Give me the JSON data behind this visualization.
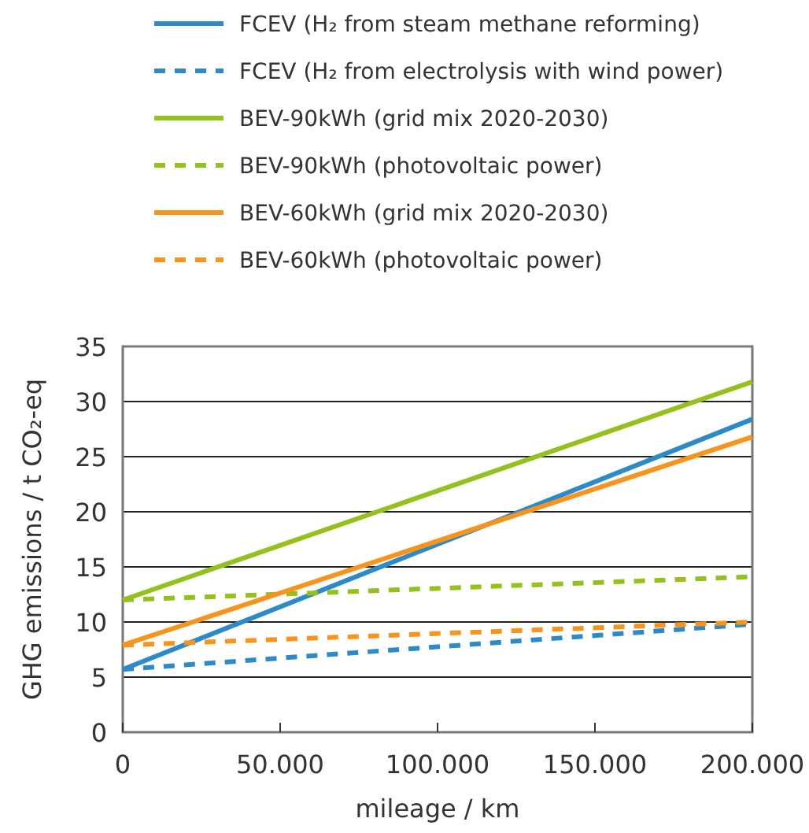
{
  "chart_data": {
    "type": "line",
    "xlabel": "mileage / km",
    "ylabel": "GHG emissions / t CO₂-eq",
    "x": [
      0,
      200000
    ],
    "xlim": [
      0,
      200000
    ],
    "xticks": [
      {
        "value": 0,
        "label": "0"
      },
      {
        "value": 50000,
        "label": "50.000"
      },
      {
        "value": 100000,
        "label": "100.000"
      },
      {
        "value": 150000,
        "label": "150.000"
      },
      {
        "value": 200000,
        "label": "200.000"
      }
    ],
    "ylim": [
      0,
      35
    ],
    "yticks": [
      0,
      5,
      10,
      15,
      20,
      25,
      30,
      35
    ],
    "grid": "y",
    "legend": "top",
    "marker": "none",
    "series": [
      {
        "name": "FCEV (H₂ from steam methane reforming)",
        "color": "#2e8ac6",
        "values": [
          5.7,
          28.4
        ],
        "line_style": "solid"
      },
      {
        "name": "FCEV (H₂ from electrolysis with wind power)",
        "color": "#2e8ac6",
        "values": [
          5.7,
          9.8
        ],
        "line_style": "dashed"
      },
      {
        "name": "BEV-90kWh (grid mix 2020-2030)",
        "color": "#95c11f",
        "values": [
          12,
          31.8
        ],
        "line_style": "solid"
      },
      {
        "name": "BEV-90kWh (photovoltaic power)",
        "color": "#95c11f",
        "values": [
          12,
          14.1
        ],
        "line_style": "dashed"
      },
      {
        "name": "BEV-60kWh (grid mix 2020-2030)",
        "color": "#f7941d",
        "values": [
          7.9,
          26.8
        ],
        "line_style": "solid"
      },
      {
        "name": "BEV-60kWh (photovoltaic power)",
        "color": "#f7941d",
        "values": [
          7.9,
          10
        ],
        "line_style": "dashed"
      }
    ]
  }
}
